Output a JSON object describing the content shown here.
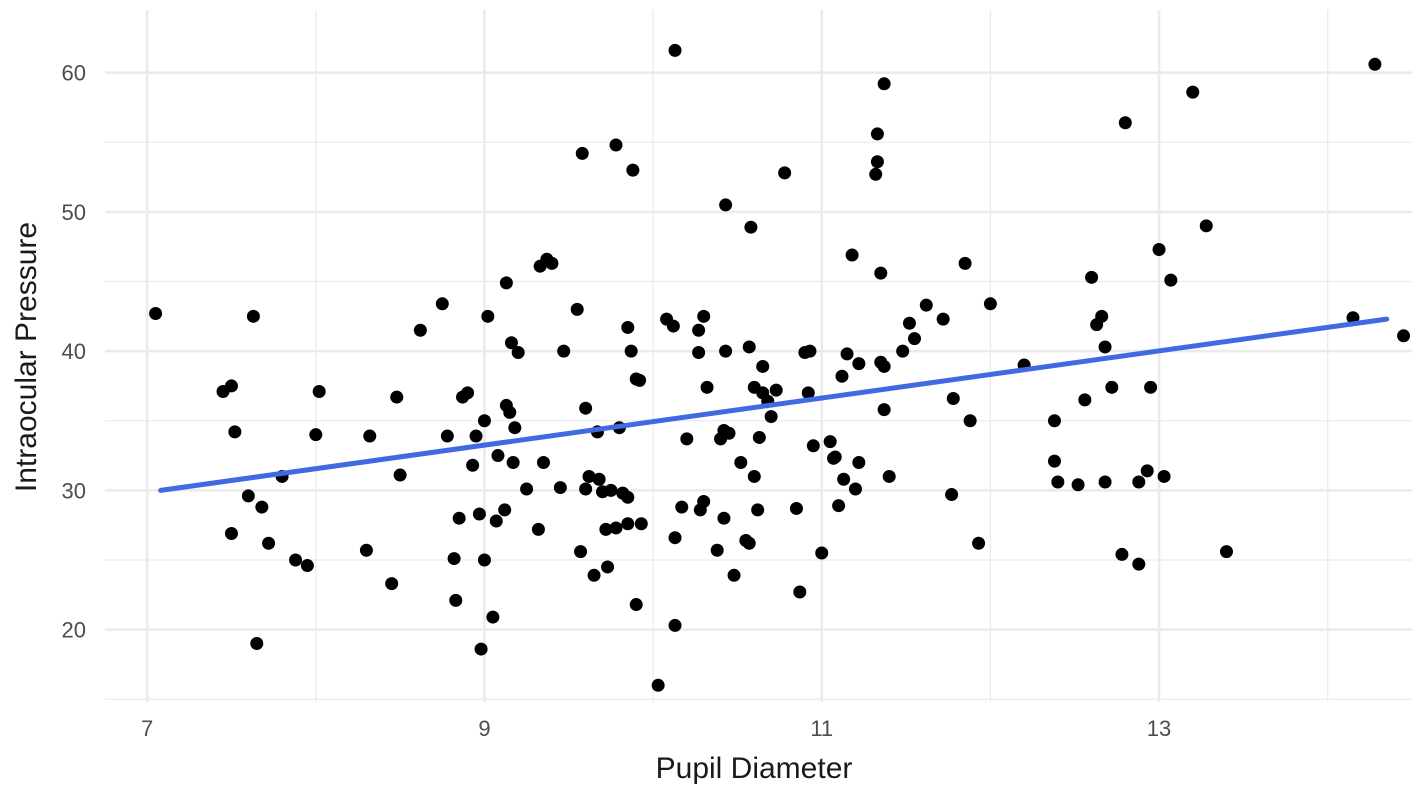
{
  "chart_data": {
    "type": "scatter",
    "title": "",
    "xlabel": "Pupil Diameter",
    "ylabel": "Intraocular Pressure",
    "xlim": [
      6.75,
      14.5
    ],
    "ylim": [
      14.8,
      64.5
    ],
    "x_ticks": [
      7,
      9,
      11,
      13
    ],
    "y_ticks": [
      20,
      30,
      40,
      50,
      60
    ],
    "x_tick_labels": [
      "7",
      "9",
      "11",
      "13"
    ],
    "y_tick_labels": [
      "20",
      "30",
      "40",
      "50",
      "60"
    ],
    "x_minor_ticks": [
      8,
      10,
      12,
      14
    ],
    "y_minor_ticks": [
      15,
      25,
      35,
      45,
      55
    ],
    "grid": true,
    "legend": "none",
    "colors": {
      "points": "#000000",
      "fit_line": "#4169e1",
      "grid": "#ebebeb"
    },
    "fit_line": {
      "x": [
        7.08,
        14.35
      ],
      "y": [
        30.0,
        42.3
      ]
    },
    "points": [
      [
        7.05,
        42.7
      ],
      [
        7.45,
        37.1
      ],
      [
        7.5,
        37.5
      ],
      [
        7.5,
        26.9
      ],
      [
        7.52,
        34.2
      ],
      [
        7.6,
        29.6
      ],
      [
        7.63,
        42.5
      ],
      [
        7.65,
        19.0
      ],
      [
        7.68,
        28.8
      ],
      [
        7.72,
        26.2
      ],
      [
        7.8,
        31.0
      ],
      [
        7.88,
        25.0
      ],
      [
        7.95,
        24.6
      ],
      [
        8.0,
        34.0
      ],
      [
        8.02,
        37.1
      ],
      [
        8.3,
        25.7
      ],
      [
        8.32,
        33.9
      ],
      [
        8.45,
        23.3
      ],
      [
        8.48,
        36.7
      ],
      [
        8.5,
        31.1
      ],
      [
        8.62,
        41.5
      ],
      [
        8.75,
        43.4
      ],
      [
        8.78,
        33.9
      ],
      [
        8.82,
        25.1
      ],
      [
        8.83,
        22.1
      ],
      [
        8.85,
        28.0
      ],
      [
        8.87,
        36.7
      ],
      [
        8.9,
        37.0
      ],
      [
        8.93,
        31.8
      ],
      [
        8.95,
        33.9
      ],
      [
        8.97,
        28.3
      ],
      [
        8.98,
        18.6
      ],
      [
        9.0,
        25.0
      ],
      [
        9.0,
        35.0
      ],
      [
        9.02,
        42.5
      ],
      [
        9.05,
        20.9
      ],
      [
        9.07,
        27.8
      ],
      [
        9.08,
        32.5
      ],
      [
        9.12,
        28.6
      ],
      [
        9.13,
        44.9
      ],
      [
        9.13,
        36.1
      ],
      [
        9.15,
        35.6
      ],
      [
        9.16,
        40.6
      ],
      [
        9.17,
        32.0
      ],
      [
        9.18,
        34.5
      ],
      [
        9.2,
        39.9
      ],
      [
        9.25,
        30.1
      ],
      [
        9.32,
        27.2
      ],
      [
        9.35,
        32.0
      ],
      [
        9.33,
        46.1
      ],
      [
        9.37,
        46.6
      ],
      [
        9.4,
        46.3
      ],
      [
        9.45,
        30.2
      ],
      [
        9.47,
        40.0
      ],
      [
        9.55,
        43.0
      ],
      [
        9.57,
        25.6
      ],
      [
        9.58,
        54.2
      ],
      [
        9.6,
        30.1
      ],
      [
        9.6,
        35.9
      ],
      [
        9.62,
        31.0
      ],
      [
        9.65,
        23.9
      ],
      [
        9.67,
        34.2
      ],
      [
        9.68,
        30.8
      ],
      [
        9.7,
        29.9
      ],
      [
        9.72,
        27.2
      ],
      [
        9.73,
        24.5
      ],
      [
        9.75,
        30.0
      ],
      [
        9.78,
        27.3
      ],
      [
        9.78,
        54.8
      ],
      [
        9.8,
        34.5
      ],
      [
        9.82,
        29.8
      ],
      [
        9.85,
        29.5
      ],
      [
        9.85,
        41.7
      ],
      [
        9.85,
        27.6
      ],
      [
        9.87,
        40.0
      ],
      [
        9.88,
        53.0
      ],
      [
        9.9,
        38.0
      ],
      [
        9.9,
        21.8
      ],
      [
        9.92,
        37.9
      ],
      [
        9.93,
        27.6
      ],
      [
        10.03,
        16.0
      ],
      [
        10.08,
        42.3
      ],
      [
        10.12,
        41.8
      ],
      [
        10.13,
        26.6
      ],
      [
        10.13,
        61.6
      ],
      [
        10.13,
        20.3
      ],
      [
        10.17,
        28.8
      ],
      [
        10.2,
        33.7
      ],
      [
        10.27,
        41.5
      ],
      [
        10.27,
        39.9
      ],
      [
        10.28,
        28.6
      ],
      [
        10.3,
        29.2
      ],
      [
        10.3,
        42.5
      ],
      [
        10.32,
        37.4
      ],
      [
        10.38,
        25.7
      ],
      [
        10.4,
        33.7
      ],
      [
        10.42,
        28.0
      ],
      [
        10.42,
        34.3
      ],
      [
        10.43,
        40.0
      ],
      [
        10.43,
        50.5
      ],
      [
        10.45,
        34.1
      ],
      [
        10.48,
        23.9
      ],
      [
        10.52,
        32.0
      ],
      [
        10.55,
        26.4
      ],
      [
        10.57,
        26.2
      ],
      [
        10.57,
        40.3
      ],
      [
        10.58,
        48.9
      ],
      [
        10.6,
        31.0
      ],
      [
        10.6,
        37.4
      ],
      [
        10.62,
        28.6
      ],
      [
        10.63,
        33.8
      ],
      [
        10.65,
        38.9
      ],
      [
        10.65,
        37.0
      ],
      [
        10.68,
        36.4
      ],
      [
        10.7,
        35.3
      ],
      [
        10.73,
        37.2
      ],
      [
        10.78,
        52.8
      ],
      [
        10.85,
        28.7
      ],
      [
        10.87,
        22.7
      ],
      [
        10.9,
        39.9
      ],
      [
        10.92,
        37.0
      ],
      [
        10.93,
        40.0
      ],
      [
        10.95,
        33.2
      ],
      [
        11.0,
        25.5
      ],
      [
        11.05,
        33.5
      ],
      [
        11.07,
        32.3
      ],
      [
        11.08,
        32.4
      ],
      [
        11.1,
        28.9
      ],
      [
        11.12,
        38.2
      ],
      [
        11.13,
        30.8
      ],
      [
        11.15,
        39.8
      ],
      [
        11.18,
        46.9
      ],
      [
        11.2,
        30.1
      ],
      [
        11.22,
        39.1
      ],
      [
        11.22,
        32.0
      ],
      [
        11.32,
        52.7
      ],
      [
        11.33,
        53.6
      ],
      [
        11.33,
        55.6
      ],
      [
        11.35,
        45.6
      ],
      [
        11.35,
        39.2
      ],
      [
        11.37,
        59.2
      ],
      [
        11.37,
        38.9
      ],
      [
        11.37,
        35.8
      ],
      [
        11.4,
        31.0
      ],
      [
        11.48,
        40.0
      ],
      [
        11.52,
        42.0
      ],
      [
        11.55,
        40.9
      ],
      [
        11.62,
        43.3
      ],
      [
        11.72,
        42.3
      ],
      [
        11.77,
        29.7
      ],
      [
        11.78,
        36.6
      ],
      [
        11.85,
        46.3
      ],
      [
        11.88,
        35.0
      ],
      [
        11.93,
        26.2
      ],
      [
        12.0,
        43.4
      ],
      [
        12.2,
        39.0
      ],
      [
        12.38,
        35.0
      ],
      [
        12.38,
        32.1
      ],
      [
        12.4,
        30.6
      ],
      [
        12.52,
        30.4
      ],
      [
        12.56,
        36.5
      ],
      [
        12.6,
        45.3
      ],
      [
        12.63,
        41.9
      ],
      [
        12.66,
        42.5
      ],
      [
        12.68,
        30.6
      ],
      [
        12.68,
        40.3
      ],
      [
        12.72,
        37.4
      ],
      [
        12.78,
        25.4
      ],
      [
        12.8,
        56.4
      ],
      [
        12.88,
        30.6
      ],
      [
        12.88,
        24.7
      ],
      [
        12.93,
        31.4
      ],
      [
        12.95,
        37.4
      ],
      [
        13.0,
        47.3
      ],
      [
        13.03,
        31.0
      ],
      [
        13.07,
        45.1
      ],
      [
        13.2,
        58.6
      ],
      [
        13.28,
        49.0
      ],
      [
        13.4,
        25.6
      ],
      [
        14.15,
        42.4
      ],
      [
        14.28,
        60.6
      ],
      [
        14.45,
        41.1
      ]
    ]
  }
}
